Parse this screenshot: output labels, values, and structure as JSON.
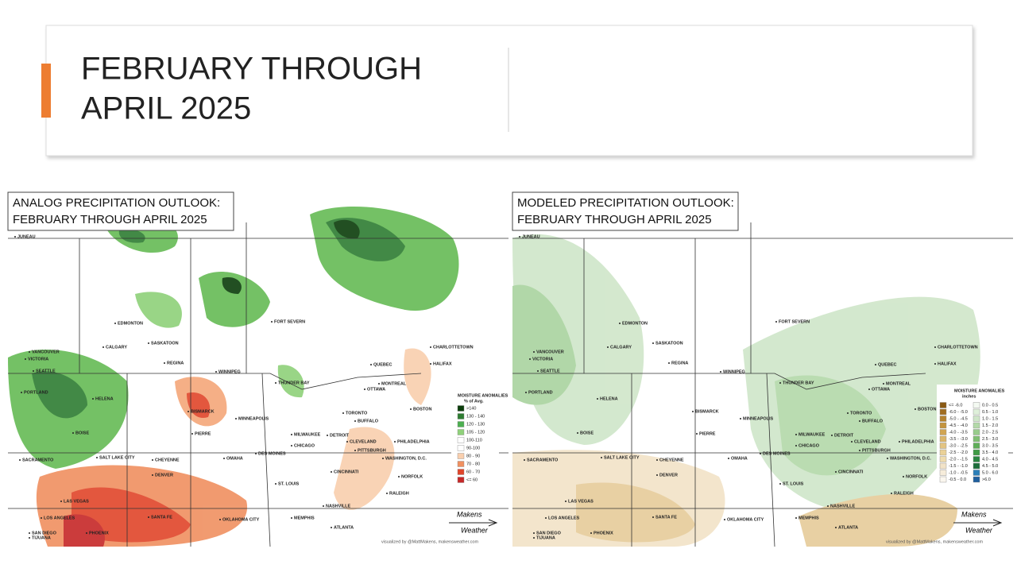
{
  "header": {
    "title_lines": [
      "FEBRUARY THROUGH",
      "APRIL 2025"
    ]
  },
  "maps": [
    {
      "title_lines": [
        "ANALOG PRECIPITATION OUTLOOK:",
        "FEBRUARY THROUGH APRIL 2025"
      ],
      "legend": {
        "title": "MOISTURE ANOMALIES",
        "unit": "% of Avg.",
        "items": [
          ">140",
          "130 - 140",
          "120 - 130",
          "105 - 120",
          "100-110",
          "90-100",
          "80 - 90",
          "70 - 80",
          "60 - 70",
          "<= 60"
        ]
      },
      "credit": "visualized by @MattMakens, makensweather.com",
      "logo": [
        "Makens",
        "Weather"
      ]
    },
    {
      "title_lines": [
        "MODELED PRECIPITATION OUTLOOK:",
        "FEBRUARY THROUGH APRIL 2025"
      ],
      "legend": {
        "title": "MOISTURE ANOMALIES",
        "unit": "inches",
        "items": [
          "<= -6.0",
          "-6.0 - -5.0",
          "-5.0 - -4.5",
          "-4.5 - -4.0",
          "-4.0 - -3.5",
          "-3.5 - -3.0",
          "-3.0 - -2.5",
          "-2.5 - -2.0",
          "-2.0 - -1.5",
          "-1.5 - -1.0",
          "-1.0 - -0.5",
          "-0.5 - 0.0",
          "0.0 - 0.5",
          "0.5 - 1.0",
          "1.0 - 1.5",
          "1.5 - 2.0",
          "2.0 - 2.5",
          "2.5 - 3.0",
          "3.0 - 3.5",
          "3.5 - 4.0",
          "4.0 - 4.5",
          "4.5 - 5.0",
          "5.0 - 6.0",
          ">6.0"
        ]
      },
      "credit": "visualized by @MattMakens, makensweather.com",
      "logo": [
        "Makens",
        "Weather"
      ]
    }
  ],
  "cities": [
    "JUNEAU",
    "VANCOUVER",
    "VICTORIA",
    "SEATTLE",
    "PORTLAND",
    "EDMONTON",
    "CALGARY",
    "SASKATOON",
    "REGINA",
    "WINNIPEG",
    "FORT SEVERN",
    "THUNDER BAY",
    "QUEBEC",
    "CHARLOTTETOWN",
    "HALIFAX",
    "MONTREAL",
    "OTTAWA",
    "TORONTO",
    "BUFFALO",
    "BOSTON",
    "HELENA",
    "BISMARCK",
    "PIERRE",
    "MINNEAPOLIS",
    "BOISE",
    "SACRAMENTO",
    "SALT LAKE CITY",
    "CHEYENNE",
    "DENVER",
    "OMAHA",
    "DES MOINES",
    "CHICAGO",
    "MILWAUKEE",
    "DETROIT",
    "CLEVELAND",
    "PITTSBURGH",
    "PHILADELPHIA",
    "WASHINGTON, D.C.",
    "NORFOLK",
    "CINCINNATI",
    "ST. LOUIS",
    "LAS VEGAS",
    "LOS ANGELES",
    "SAN DIEGO",
    "TIJUANA",
    "PHOENIX",
    "SANTA FE",
    "OKLAHOMA CITY",
    "MEMPHIS",
    "NASHVILLE",
    "ATLANTA",
    "RALEIGH"
  ]
}
